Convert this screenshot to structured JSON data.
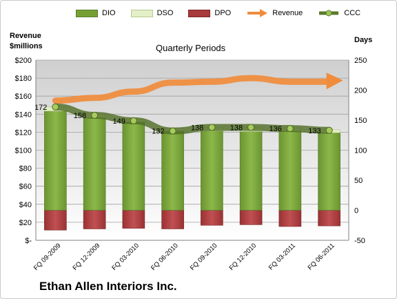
{
  "chart_data": {
    "type": "bar",
    "title": "Quarterly Periods",
    "company": "Ethan Allen Interiors Inc.",
    "y_left_label": [
      "Revenue",
      "$millions"
    ],
    "y_right_label": "Days",
    "categories": [
      "FQ 09-2009",
      "FQ 12-2009",
      "FQ 03-2010",
      "FQ 06-2010",
      "FQ 09-2010",
      "FQ 12-2010",
      "FQ 03-2011",
      "FQ 06-2011"
    ],
    "y_left_lim": [
      0,
      200
    ],
    "y_left_ticks": [
      "$200",
      "$180",
      "$160",
      "$140",
      "$120",
      "$100",
      "$80",
      "$60",
      "$40",
      "$20",
      "$-"
    ],
    "y_right_lim": [
      -50,
      250
    ],
    "y_right_ticks": [
      "250",
      "200",
      "150",
      "100",
      "50",
      "0",
      "-50"
    ],
    "legend_position": "top",
    "series": [
      {
        "name": "DIO",
        "axis": "days",
        "type": "stacked-bar",
        "color": "#77a033",
        "values": [
          165,
          154,
          147,
          132,
          132,
          131,
          132,
          129
        ]
      },
      {
        "name": "DSO",
        "axis": "days",
        "type": "stacked-bar",
        "color": "#e3efc8",
        "values": [
          7,
          6,
          5,
          5,
          6,
          7,
          5,
          5
        ]
      },
      {
        "name": "DPO",
        "axis": "days",
        "type": "bar",
        "color": "#a83a3c",
        "values": [
          -33,
          -31,
          -30,
          -31,
          -25,
          -24,
          -27,
          -26
        ]
      },
      {
        "name": "Revenue",
        "axis": "revenue",
        "type": "line",
        "color": "#f08c3c",
        "values": [
          155,
          158,
          165,
          175,
          176,
          180,
          176,
          176
        ]
      },
      {
        "name": "CCC",
        "axis": "days",
        "type": "line",
        "color": "#5a7a2a",
        "values": [
          172,
          158,
          149,
          132,
          138,
          138,
          136,
          133
        ],
        "labels": [
          "172",
          "158",
          "149",
          "132",
          "138",
          "138",
          "136",
          "133"
        ]
      }
    ]
  }
}
